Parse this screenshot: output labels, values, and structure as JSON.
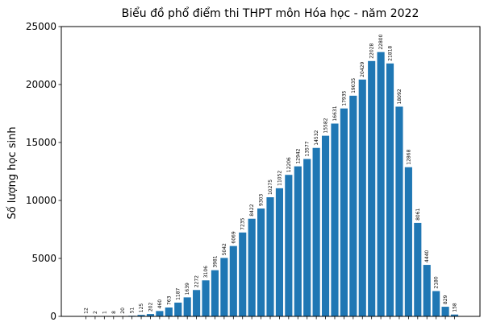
{
  "chart_data": {
    "type": "bar",
    "title": "Biểu đồ phổ điểm thi THPT môn Hóa học - năm 2022",
    "xlabel": "",
    "ylabel": "Số lượng học sinh",
    "ylim": [
      0,
      25000
    ],
    "yticks": [
      0,
      5000,
      10000,
      15000,
      20000,
      25000
    ],
    "grid": false,
    "legend": "none",
    "bar_color": "#1f77b4",
    "values": [
      12,
      2,
      1,
      8,
      20,
      51,
      125,
      202,
      460,
      763,
      1187,
      1639,
      2272,
      3106,
      3981,
      5042,
      6069,
      7235,
      8422,
      9303,
      10275,
      11052,
      12206,
      12942,
      13577,
      14532,
      15582,
      16631,
      17935,
      19035,
      20429,
      22028,
      22800,
      21818,
      18092,
      12868,
      8061,
      4440,
      2180,
      829,
      158
    ]
  }
}
